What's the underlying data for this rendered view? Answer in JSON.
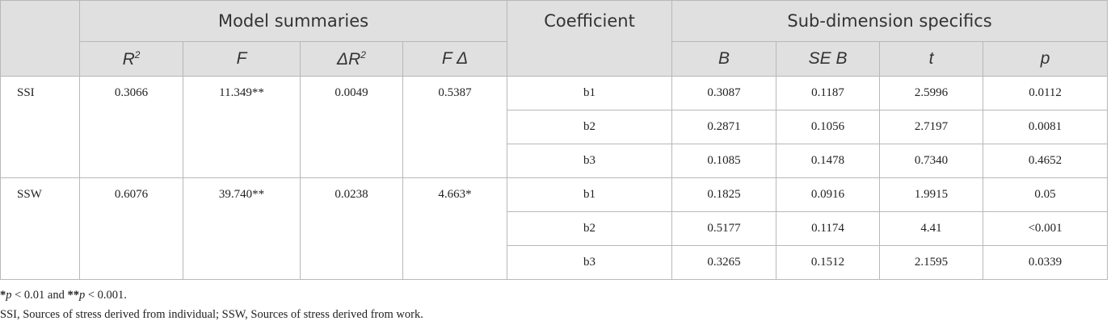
{
  "header": {
    "group_model": "Model summaries",
    "group_coef": "Coefficient",
    "group_sub": "Sub-dimension specifics",
    "col_r2": "R",
    "col_r2_sup": "2",
    "col_f": "F",
    "col_dr2": "ΔR",
    "col_dr2_sup": "2",
    "col_fd": "F Δ",
    "col_b": "B",
    "col_seb": "SE B",
    "col_t": "t",
    "col_p": "p"
  },
  "groups": [
    {
      "label": "SSI",
      "r2": "0.3066",
      "f": "11.349**",
      "dr2": "0.0049",
      "fd": "0.5387",
      "rows": [
        {
          "coef": "b1",
          "b": "0.3087",
          "seb": "0.1187",
          "t": "2.5996",
          "p": "0.0112"
        },
        {
          "coef": "b2",
          "b": "0.2871",
          "seb": "0.1056",
          "t": "2.7197",
          "p": "0.0081"
        },
        {
          "coef": "b3",
          "b": "0.1085",
          "seb": "0.1478",
          "t": "0.7340",
          "p": "0.4652"
        }
      ]
    },
    {
      "label": "SSW",
      "r2": "0.6076",
      "f": "39.740**",
      "dr2": "0.0238",
      "fd": "4.663*",
      "rows": [
        {
          "coef": "b1",
          "b": "0.1825",
          "seb": "0.0916",
          "t": "1.9915",
          "p": "0.05"
        },
        {
          "coef": "b2",
          "b": "0.5177",
          "seb": "0.1174",
          "t": "4.41",
          "p": "<0.001"
        },
        {
          "coef": "b3",
          "b": "0.3265",
          "seb": "0.1512",
          "t": "2.1595",
          "p": "0.0339"
        }
      ]
    }
  ],
  "notes": {
    "n1_star1": "*",
    "n1_p1": "p",
    "n1_mid": " < 0.01 and ",
    "n1_star2": "**",
    "n1_p2": "p",
    "n1_end": " < 0.001.",
    "line2": "SSI, Sources of stress derived from individual; SSW, Sources of stress derived from work."
  }
}
